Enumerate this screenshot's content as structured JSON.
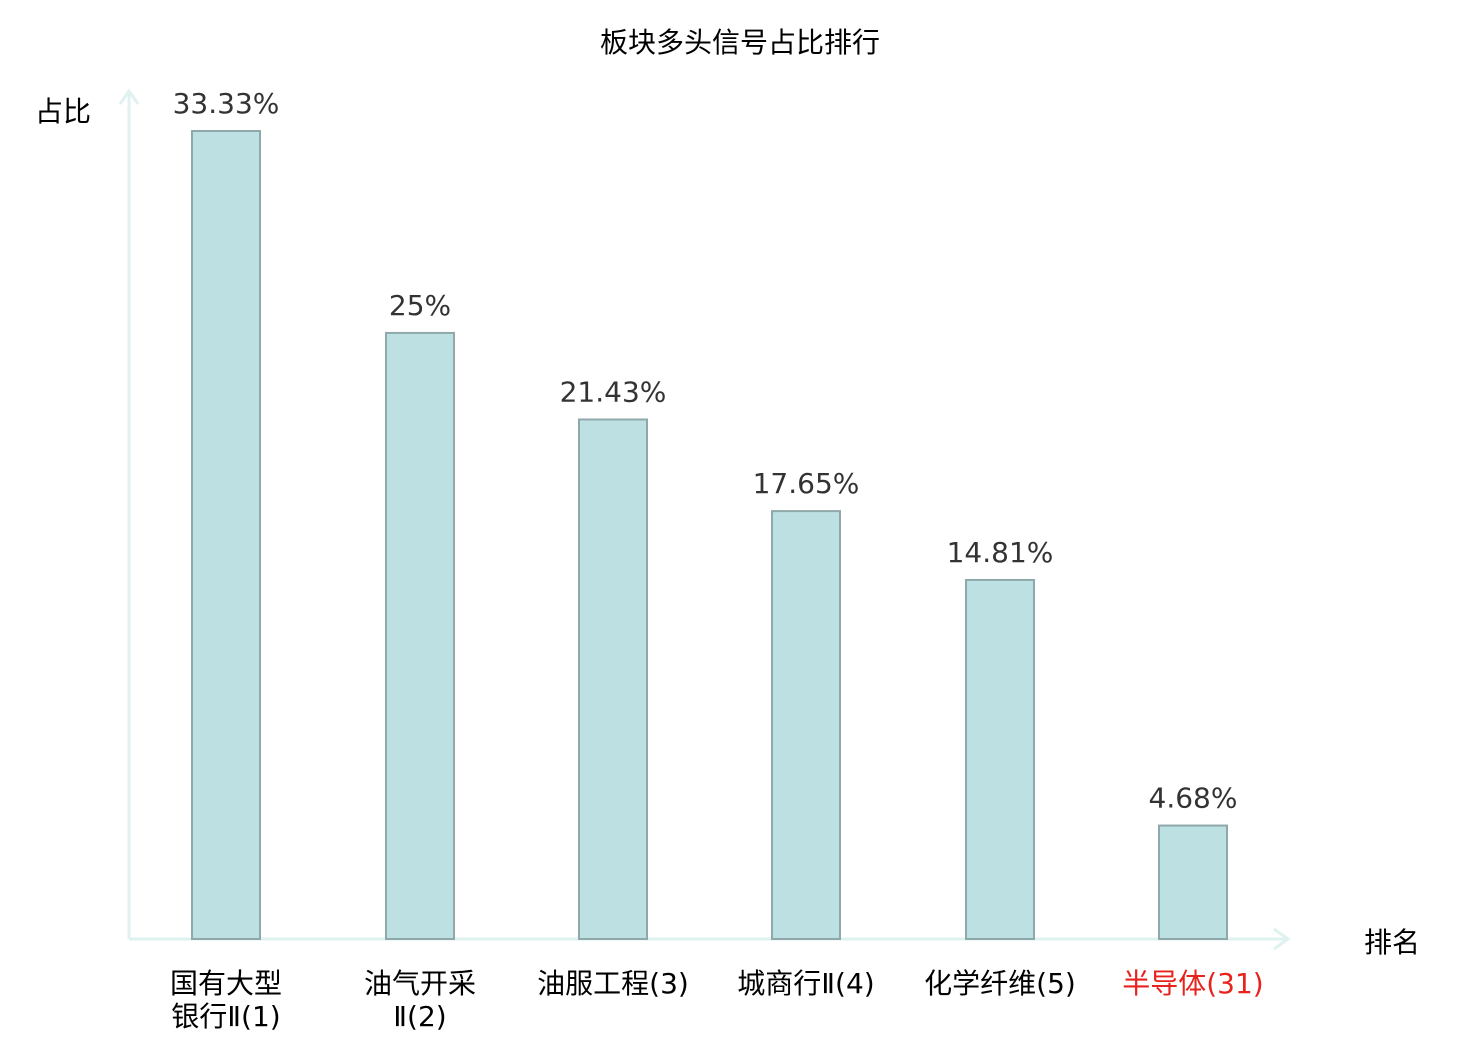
{
  "chart_data": {
    "type": "bar",
    "title": "板块多头信号占比排行",
    "xlabel": "排名",
    "ylabel": "占比",
    "categories": [
      [
        "国有大型",
        "银行Ⅱ(1)"
      ],
      [
        "油气开采",
        "Ⅱ(2)"
      ],
      [
        "油服工程(3)"
      ],
      [
        "城商行Ⅱ(4)"
      ],
      [
        "化学纤维(5)"
      ],
      [
        "半导体(31)"
      ]
    ],
    "values": [
      33.33,
      25,
      21.43,
      17.65,
      14.81,
      4.68
    ],
    "value_labels": [
      "33.33%",
      "25%",
      "21.43%",
      "17.65%",
      "14.81%",
      "4.68%"
    ],
    "highlight_index": 5,
    "ylim": [
      0,
      35
    ],
    "grid": false,
    "colors": {
      "bar_fill": "#bde1e3",
      "bar_stroke": "#8fa9aa",
      "axis": "#dff2f0",
      "label": "#000000",
      "value_label": "#333333",
      "highlight": "#e8231d"
    }
  }
}
